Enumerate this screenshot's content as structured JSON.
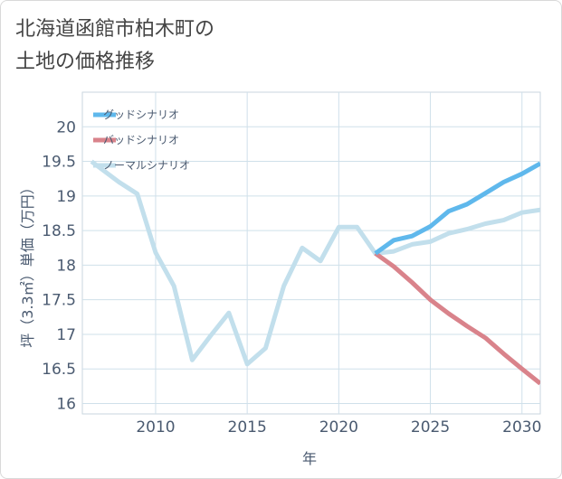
{
  "title_lines": [
    "北海道函館市柏木町の",
    "土地の価格推移"
  ],
  "chart_data": {
    "type": "line",
    "xlabel": "年",
    "ylabel": "坪（3.3㎡）単価（万円）",
    "xlim": [
      2006,
      2031
    ],
    "ylim": [
      15.85,
      20.5
    ],
    "xticks": [
      2010,
      2015,
      2020,
      2025,
      2030
    ],
    "xtick_labels": [
      "2010",
      "2015",
      "2020",
      "2025",
      "2030"
    ],
    "yticks": [
      16,
      16.5,
      17,
      17.5,
      18,
      18.5,
      19,
      19.5,
      20
    ],
    "ytick_labels": [
      "16",
      "16.5",
      "17",
      "17.5",
      "18",
      "18.5",
      "19",
      "19.5",
      "20"
    ],
    "grid": true,
    "legend_position": "top-left",
    "series": [
      {
        "name": "ノーマルシナリオ",
        "color": "#c2dfec",
        "points": [
          [
            2006.5,
            19.5
          ],
          [
            2007,
            19.4
          ],
          [
            2008,
            19.2
          ],
          [
            2009,
            19.03
          ],
          [
            2010,
            18.18
          ],
          [
            2011,
            17.7
          ],
          [
            2012,
            16.63
          ],
          [
            2013,
            16.98
          ],
          [
            2014,
            17.31
          ],
          [
            2015,
            16.57
          ],
          [
            2016,
            16.8
          ],
          [
            2017,
            17.7
          ],
          [
            2018,
            18.25
          ],
          [
            2019,
            18.06
          ],
          [
            2020,
            18.55
          ],
          [
            2021,
            18.55
          ],
          [
            2022,
            18.17
          ],
          [
            2023,
            18.2
          ],
          [
            2024,
            18.3
          ],
          [
            2025,
            18.34
          ],
          [
            2026,
            18.46
          ],
          [
            2027,
            18.52
          ],
          [
            2028,
            18.6
          ],
          [
            2029,
            18.65
          ],
          [
            2030,
            18.76
          ],
          [
            2031,
            18.8
          ]
        ]
      },
      {
        "name": "バッドシナリオ",
        "color": "#d9838b",
        "points": [
          [
            2022,
            18.17
          ],
          [
            2023,
            17.98
          ],
          [
            2024,
            17.75
          ],
          [
            2025,
            17.5
          ],
          [
            2026,
            17.3
          ],
          [
            2027,
            17.12
          ],
          [
            2028,
            16.95
          ],
          [
            2029,
            16.72
          ],
          [
            2030,
            16.5
          ],
          [
            2031,
            16.29
          ]
        ]
      },
      {
        "name": "グッドシナリオ",
        "color": "#5fb8ec",
        "points": [
          [
            2022,
            18.17
          ],
          [
            2023,
            18.36
          ],
          [
            2024,
            18.42
          ],
          [
            2025,
            18.56
          ],
          [
            2026,
            18.78
          ],
          [
            2027,
            18.88
          ],
          [
            2028,
            19.04
          ],
          [
            2029,
            19.2
          ],
          [
            2030,
            19.32
          ],
          [
            2031,
            19.47
          ]
        ]
      }
    ],
    "legend_order": [
      "グッドシナリオ",
      "バッドシナリオ",
      "ノーマルシナリオ"
    ]
  }
}
